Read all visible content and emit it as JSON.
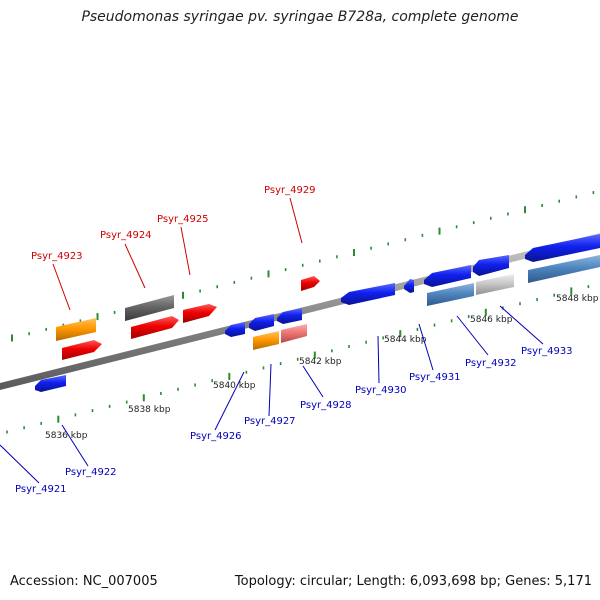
{
  "title": "Pseudomonas syringae pv. syringae B728a, complete genome",
  "footer": {
    "accession": "Accession: NC_007005",
    "summary": "Topology: circular; Length: 6,093,698 bp; Genes: 5,171"
  },
  "colors": {
    "backbone": "#8c8c8c",
    "tick": "#2e8b2e",
    "top_label": "#cc0000",
    "bottom_label": "#0000bb",
    "axis_label": "#222222",
    "gene_red": "#ee0000",
    "gene_blue": "#1020ee",
    "gene_orange": "#ff9900",
    "gene_gray": "#666666",
    "gene_pink": "#ee7777",
    "gene_steel": "#4f86c0",
    "gene_silver": "#c8c8c8"
  },
  "kbp_markers": [
    "5836 kbp",
    "5838 kbp",
    "5840 kbp",
    "5842 kbp",
    "5844 kbp",
    "5846 kbp",
    "5848 kbp"
  ],
  "genes_top": [
    {
      "label": "Psyr_4923"
    },
    {
      "label": "Psyr_4924"
    },
    {
      "label": "Psyr_4925"
    },
    {
      "label": "Psyr_4929"
    }
  ],
  "genes_bottom": [
    {
      "label": "Psyr_4921"
    },
    {
      "label": "Psyr_4922"
    },
    {
      "label": "Psyr_4926"
    },
    {
      "label": "Psyr_4927"
    },
    {
      "label": "Psyr_4928"
    },
    {
      "label": "Psyr_4930"
    },
    {
      "label": "Psyr_4931"
    },
    {
      "label": "Psyr_4932"
    },
    {
      "label": "Psyr_4933"
    }
  ]
}
